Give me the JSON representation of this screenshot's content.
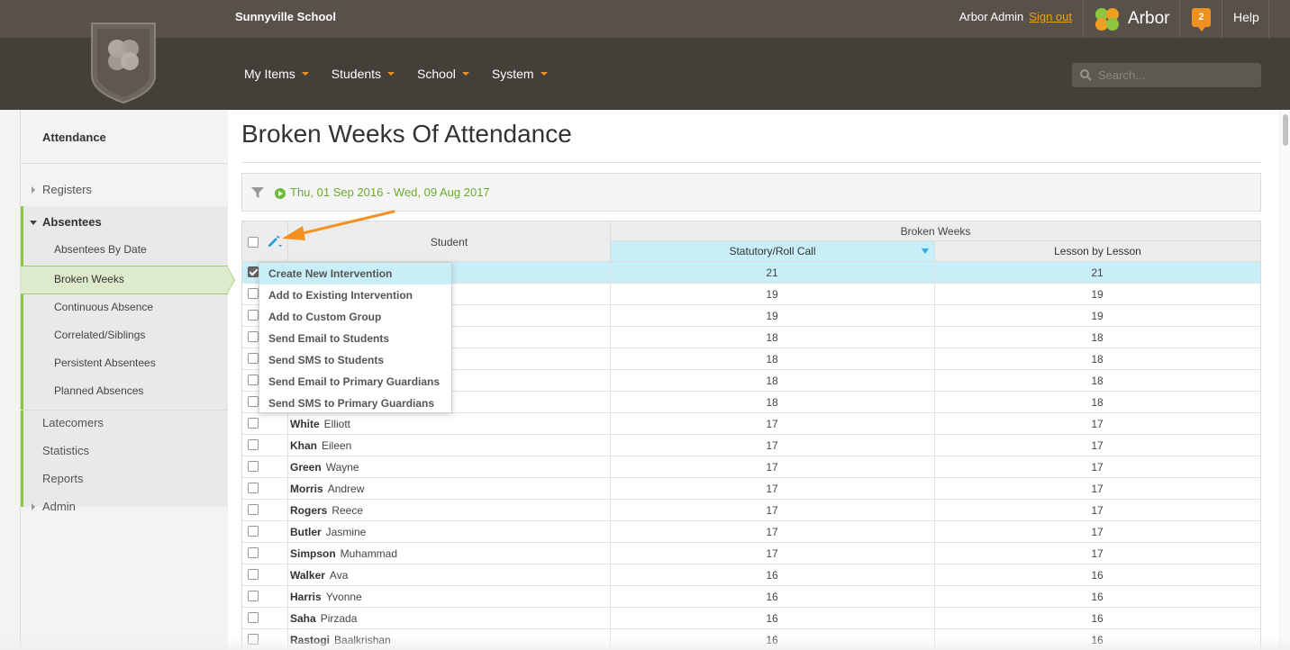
{
  "header": {
    "school_name": "Sunnyville School",
    "user_name": "Arbor Admin",
    "signout_label": "Sign out",
    "brand": "Arbor",
    "notification_count": "2",
    "help_label": "Help",
    "search_placeholder": "Search..."
  },
  "nav": {
    "items": [
      {
        "label": "My Items"
      },
      {
        "label": "Students"
      },
      {
        "label": "School"
      },
      {
        "label": "System"
      }
    ]
  },
  "sidebar": {
    "title": "Attendance",
    "items": {
      "registers": "Registers",
      "absentees": "Absentees",
      "absentees_by_date": "Absentees By Date",
      "broken_weeks": "Broken Weeks",
      "continuous_absence": "Continuous Absence",
      "correlated_siblings": "Correlated/Siblings",
      "persistent_absentees": "Persistent Absentees",
      "planned_absences": "Planned Absences",
      "latecomers": "Latecomers",
      "statistics": "Statistics",
      "reports": "Reports",
      "admin": "Admin"
    }
  },
  "page": {
    "title": "Broken Weeks Of Attendance",
    "date_range": "Thu, 01 Sep 2016 - Wed, 09 Aug 2017"
  },
  "table": {
    "header_student": "Student",
    "header_group": "Broken Weeks",
    "header_statutory": "Statutory/Roll Call",
    "header_lesson": "Lesson by Lesson",
    "rows": [
      {
        "last": "",
        "first": "",
        "statutory": "21",
        "lesson": "21",
        "checked": true
      },
      {
        "last": "",
        "first": "",
        "statutory": "19",
        "lesson": "19"
      },
      {
        "last": "",
        "first": "",
        "statutory": "19",
        "lesson": "19"
      },
      {
        "last": "",
        "first": "",
        "statutory": "18",
        "lesson": "18"
      },
      {
        "last": "",
        "first": "",
        "statutory": "18",
        "lesson": "18"
      },
      {
        "last": "",
        "first": "",
        "statutory": "18",
        "lesson": "18"
      },
      {
        "last": "",
        "first": "",
        "statutory": "18",
        "lesson": "18"
      },
      {
        "last": "White",
        "first": "Elliott",
        "statutory": "17",
        "lesson": "17"
      },
      {
        "last": "Khan",
        "first": "Eileen",
        "statutory": "17",
        "lesson": "17"
      },
      {
        "last": "Green",
        "first": "Wayne",
        "statutory": "17",
        "lesson": "17"
      },
      {
        "last": "Morris",
        "first": "Andrew",
        "statutory": "17",
        "lesson": "17"
      },
      {
        "last": "Rogers",
        "first": "Reece",
        "statutory": "17",
        "lesson": "17"
      },
      {
        "last": "Butler",
        "first": "Jasmine",
        "statutory": "17",
        "lesson": "17"
      },
      {
        "last": "Simpson",
        "first": "Muhammad",
        "statutory": "17",
        "lesson": "17"
      },
      {
        "last": "Walker",
        "first": "Ava",
        "statutory": "16",
        "lesson": "16"
      },
      {
        "last": "Harris",
        "first": "Yvonne",
        "statutory": "16",
        "lesson": "16"
      },
      {
        "last": "Saha",
        "first": "Pirzada",
        "statutory": "16",
        "lesson": "16"
      },
      {
        "last": "Rastogi",
        "first": "Baalkrishan",
        "statutory": "16",
        "lesson": "16"
      }
    ]
  },
  "menu": {
    "items": [
      "Create New Intervention",
      "Add to Existing Intervention",
      "Add to Custom Group",
      "Send Email to Students",
      "Send SMS to Students",
      "Send Email to Primary Guardians",
      "Send SMS to Primary Guardians"
    ]
  },
  "colors": {
    "accent_green": "#8cc63f",
    "link_orange": "#f0a020",
    "selected_row": "#c8eef8",
    "annotation_arrow": "#f39223"
  }
}
